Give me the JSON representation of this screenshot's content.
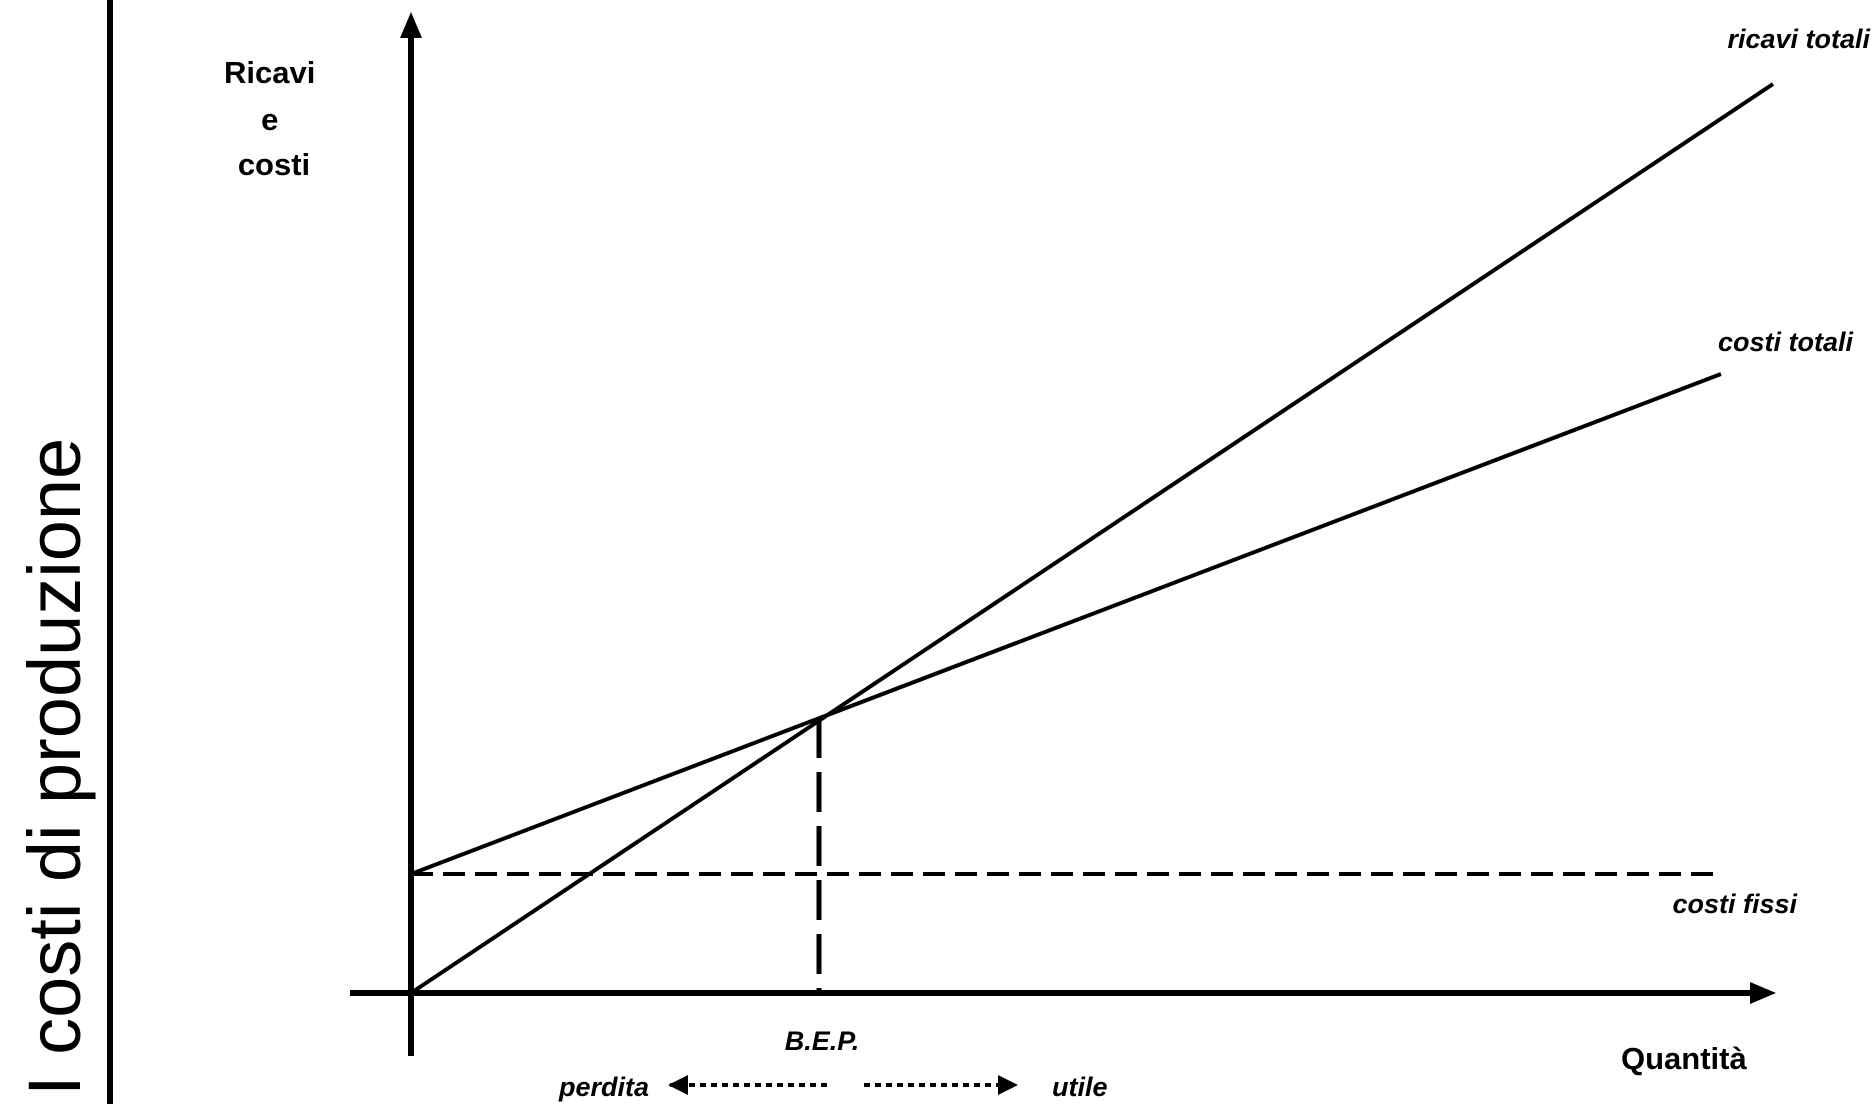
{
  "side_title": "I costi di produzione",
  "y_axis_label": [
    "Ricavi",
    "e",
    "costi"
  ],
  "x_axis_label": "Quantità",
  "lines": {
    "total_revenue": "ricavi totali",
    "total_costs": "costi totali",
    "fixed_costs": "costi fissi"
  },
  "bep_label": "B.E.P.",
  "loss_label": "perdita",
  "profit_label": "utile",
  "colors": {
    "ink": "#000000",
    "background": "#ffffff"
  }
}
